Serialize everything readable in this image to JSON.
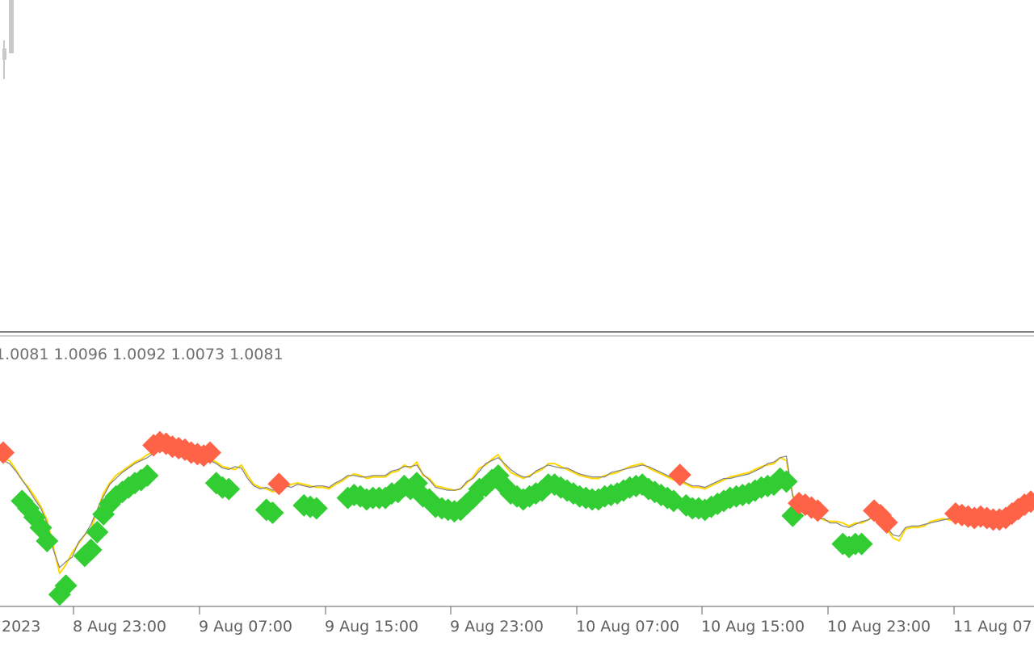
{
  "colors": {
    "background": "#ffffff",
    "separator": "#808080",
    "axis": "#606060",
    "candle": "#c8c8c8",
    "signal_line": "#ffd700",
    "price_line": "#808080",
    "up_marker": "#32cd32",
    "down_marker": "#ff6347"
  },
  "indicator_values": "1.0081 1.0096 1.0092 1.0073 1.0081",
  "chart_data": {
    "type": "line",
    "title": "",
    "xlabel": "",
    "ylabel": "",
    "grid": false,
    "x_ticks": [
      "2023",
      "8 Aug 23:00",
      "9 Aug 07:00",
      "9 Aug 15:00",
      "9 Aug 23:00",
      "10 Aug 07:00",
      "10 Aug 15:00",
      "10 Aug 23:00",
      "11 Aug 07"
    ],
    "x_range_bars": [
      0,
      164
    ],
    "y_range": [
      0,
      100
    ],
    "series": [
      {
        "role": "signal",
        "color": "#ffd700",
        "values": [
          91,
          90,
          84,
          77,
          72,
          66,
          59,
          50,
          32,
          14,
          20,
          28,
          34,
          40,
          44,
          56,
          68,
          75,
          80,
          83,
          86,
          89,
          91,
          94,
          96,
          98,
          97,
          95,
          94,
          93,
          91,
          90,
          89,
          91,
          89,
          86,
          85,
          84,
          87,
          80,
          74,
          72,
          71,
          69,
          70,
          72,
          74,
          75,
          74,
          73,
          72,
          72,
          71,
          74,
          76,
          79,
          81,
          80,
          78,
          79,
          79,
          79,
          82,
          83,
          87,
          85,
          89,
          80,
          78,
          73,
          72,
          71,
          70,
          71,
          75,
          79,
          85,
          87,
          91,
          94,
          87,
          82,
          80,
          78,
          80,
          82,
          84,
          88,
          88,
          86,
          84,
          82,
          80,
          79,
          78,
          78,
          80,
          81,
          82,
          84,
          86,
          87,
          88,
          85,
          83,
          81,
          79,
          77,
          76,
          74,
          72,
          72,
          71,
          73,
          75,
          77,
          79,
          80,
          81,
          82,
          84,
          86,
          87,
          88,
          92,
          90,
          67,
          57,
          56,
          54,
          52,
          50,
          49,
          49,
          48,
          46,
          48,
          48,
          50,
          52,
          49,
          44,
          38,
          36,
          44,
          45,
          45,
          46,
          49,
          50,
          51,
          50,
          50,
          49,
          48,
          47,
          48,
          47,
          46,
          46,
          47,
          50,
          53,
          56,
          58,
          59
        ]
      },
      {
        "role": "price",
        "color": "#808080",
        "values": [
          90,
          88,
          83,
          77,
          71,
          64,
          58,
          48,
          30,
          18,
          22,
          25,
          35,
          40,
          47,
          57,
          66,
          74,
          78,
          82,
          85,
          88,
          90,
          92,
          95,
          97,
          96,
          94,
          93,
          92,
          90,
          91,
          90,
          90,
          88,
          85,
          84,
          86,
          85,
          78,
          73,
          71,
          72,
          70,
          71,
          73,
          72,
          74,
          73,
          72,
          73,
          73,
          72,
          75,
          77,
          80,
          80,
          79,
          79,
          80,
          80,
          80,
          83,
          84,
          86,
          86,
          87,
          81,
          77,
          72,
          71,
          70,
          70,
          71,
          76,
          78,
          83,
          88,
          90,
          92,
          88,
          84,
          81,
          79,
          79,
          83,
          85,
          87,
          86,
          85,
          85,
          83,
          81,
          80,
          79,
          79,
          79,
          82,
          83,
          84,
          85,
          86,
          87,
          86,
          84,
          82,
          80,
          78,
          77,
          75,
          73,
          73,
          72,
          74,
          76,
          78,
          78,
          79,
          80,
          81,
          83,
          85,
          88,
          89,
          92,
          93,
          66,
          58,
          55,
          53,
          51,
          51,
          48,
          48,
          46,
          45,
          47,
          49,
          50,
          53,
          51,
          45,
          40,
          39,
          45,
          46,
          46,
          47,
          48,
          49,
          50,
          51,
          50,
          50,
          49,
          48,
          49,
          48,
          47,
          47,
          48,
          51,
          54,
          57,
          59,
          60
        ]
      }
    ],
    "signals": [
      {
        "bar": 0,
        "type": "down"
      },
      {
        "bar": 3,
        "type": "up"
      },
      {
        "bar": 4,
        "type": "up"
      },
      {
        "bar": 5,
        "type": "up"
      },
      {
        "bar": 6,
        "type": "up"
      },
      {
        "bar": 7,
        "type": "up"
      },
      {
        "bar": 9,
        "type": "up"
      },
      {
        "bar": 10,
        "type": "up"
      },
      {
        "bar": 13,
        "type": "up"
      },
      {
        "bar": 14,
        "type": "up"
      },
      {
        "bar": 15,
        "type": "up"
      },
      {
        "bar": 16,
        "type": "up"
      },
      {
        "bar": 17,
        "type": "up"
      },
      {
        "bar": 18,
        "type": "up"
      },
      {
        "bar": 19,
        "type": "up"
      },
      {
        "bar": 20,
        "type": "up"
      },
      {
        "bar": 21,
        "type": "up"
      },
      {
        "bar": 22,
        "type": "up"
      },
      {
        "bar": 23,
        "type": "up"
      },
      {
        "bar": 24,
        "type": "down"
      },
      {
        "bar": 25,
        "type": "down"
      },
      {
        "bar": 26,
        "type": "down"
      },
      {
        "bar": 27,
        "type": "down"
      },
      {
        "bar": 28,
        "type": "down"
      },
      {
        "bar": 29,
        "type": "down"
      },
      {
        "bar": 30,
        "type": "down"
      },
      {
        "bar": 31,
        "type": "down"
      },
      {
        "bar": 32,
        "type": "down"
      },
      {
        "bar": 33,
        "type": "down"
      },
      {
        "bar": 34,
        "type": "up"
      },
      {
        "bar": 35,
        "type": "up"
      },
      {
        "bar": 36,
        "type": "up"
      },
      {
        "bar": 42,
        "type": "up"
      },
      {
        "bar": 43,
        "type": "up"
      },
      {
        "bar": 44,
        "type": "down"
      },
      {
        "bar": 48,
        "type": "up"
      },
      {
        "bar": 49,
        "type": "up"
      },
      {
        "bar": 50,
        "type": "up"
      },
      {
        "bar": 55,
        "type": "up"
      },
      {
        "bar": 56,
        "type": "up"
      },
      {
        "bar": 57,
        "type": "up"
      },
      {
        "bar": 58,
        "type": "up"
      },
      {
        "bar": 59,
        "type": "up"
      },
      {
        "bar": 60,
        "type": "up"
      },
      {
        "bar": 61,
        "type": "up"
      },
      {
        "bar": 62,
        "type": "up"
      },
      {
        "bar": 63,
        "type": "up"
      },
      {
        "bar": 64,
        "type": "up"
      },
      {
        "bar": 65,
        "type": "up"
      },
      {
        "bar": 66,
        "type": "up"
      },
      {
        "bar": 67,
        "type": "up"
      },
      {
        "bar": 68,
        "type": "up"
      },
      {
        "bar": 69,
        "type": "up"
      },
      {
        "bar": 70,
        "type": "up"
      },
      {
        "bar": 71,
        "type": "up"
      },
      {
        "bar": 72,
        "type": "up"
      },
      {
        "bar": 73,
        "type": "up"
      },
      {
        "bar": 74,
        "type": "up"
      },
      {
        "bar": 75,
        "type": "up"
      },
      {
        "bar": 76,
        "type": "up"
      },
      {
        "bar": 77,
        "type": "up"
      },
      {
        "bar": 78,
        "type": "up"
      },
      {
        "bar": 79,
        "type": "up"
      },
      {
        "bar": 80,
        "type": "up"
      },
      {
        "bar": 81,
        "type": "up"
      },
      {
        "bar": 82,
        "type": "up"
      },
      {
        "bar": 83,
        "type": "up"
      },
      {
        "bar": 84,
        "type": "up"
      },
      {
        "bar": 85,
        "type": "up"
      },
      {
        "bar": 86,
        "type": "up"
      },
      {
        "bar": 87,
        "type": "up"
      },
      {
        "bar": 88,
        "type": "up"
      },
      {
        "bar": 89,
        "type": "up"
      },
      {
        "bar": 90,
        "type": "up"
      },
      {
        "bar": 91,
        "type": "up"
      },
      {
        "bar": 92,
        "type": "up"
      },
      {
        "bar": 93,
        "type": "up"
      },
      {
        "bar": 94,
        "type": "up"
      },
      {
        "bar": 95,
        "type": "up"
      },
      {
        "bar": 96,
        "type": "up"
      },
      {
        "bar": 97,
        "type": "up"
      },
      {
        "bar": 98,
        "type": "up"
      },
      {
        "bar": 99,
        "type": "up"
      },
      {
        "bar": 100,
        "type": "up"
      },
      {
        "bar": 101,
        "type": "up"
      },
      {
        "bar": 102,
        "type": "up"
      },
      {
        "bar": 103,
        "type": "up"
      },
      {
        "bar": 104,
        "type": "up"
      },
      {
        "bar": 105,
        "type": "up"
      },
      {
        "bar": 106,
        "type": "up"
      },
      {
        "bar": 107,
        "type": "up"
      },
      {
        "bar": 108,
        "type": "down"
      },
      {
        "bar": 109,
        "type": "up"
      },
      {
        "bar": 110,
        "type": "up"
      },
      {
        "bar": 111,
        "type": "up"
      },
      {
        "bar": 112,
        "type": "up"
      },
      {
        "bar": 113,
        "type": "up"
      },
      {
        "bar": 114,
        "type": "up"
      },
      {
        "bar": 115,
        "type": "up"
      },
      {
        "bar": 116,
        "type": "up"
      },
      {
        "bar": 117,
        "type": "up"
      },
      {
        "bar": 118,
        "type": "up"
      },
      {
        "bar": 119,
        "type": "up"
      },
      {
        "bar": 120,
        "type": "up"
      },
      {
        "bar": 121,
        "type": "up"
      },
      {
        "bar": 122,
        "type": "up"
      },
      {
        "bar": 123,
        "type": "up"
      },
      {
        "bar": 124,
        "type": "up"
      },
      {
        "bar": 125,
        "type": "up"
      },
      {
        "bar": 126,
        "type": "up"
      },
      {
        "bar": 127,
        "type": "down"
      },
      {
        "bar": 128,
        "type": "down"
      },
      {
        "bar": 129,
        "type": "down"
      },
      {
        "bar": 130,
        "type": "down"
      },
      {
        "bar": 134,
        "type": "up"
      },
      {
        "bar": 135,
        "type": "up"
      },
      {
        "bar": 136,
        "type": "up"
      },
      {
        "bar": 137,
        "type": "up"
      },
      {
        "bar": 139,
        "type": "down"
      },
      {
        "bar": 140,
        "type": "down"
      },
      {
        "bar": 141,
        "type": "down"
      },
      {
        "bar": 152,
        "type": "down"
      },
      {
        "bar": 153,
        "type": "down"
      },
      {
        "bar": 154,
        "type": "down"
      },
      {
        "bar": 155,
        "type": "down"
      },
      {
        "bar": 156,
        "type": "down"
      },
      {
        "bar": 157,
        "type": "down"
      },
      {
        "bar": 158,
        "type": "down"
      },
      {
        "bar": 159,
        "type": "down"
      },
      {
        "bar": 160,
        "type": "down"
      },
      {
        "bar": 161,
        "type": "down"
      },
      {
        "bar": 162,
        "type": "down"
      },
      {
        "bar": 163,
        "type": "down"
      },
      {
        "bar": 164,
        "type": "down"
      }
    ]
  }
}
